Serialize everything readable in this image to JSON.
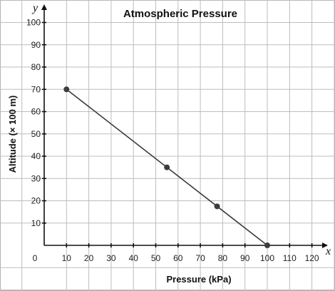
{
  "chart_data": {
    "type": "line",
    "title": "Atmospheric Pressure",
    "xlabel": "Pressure (kPa)",
    "ylabel": "Altitude (× 100 m)",
    "x_axis_var": "x",
    "y_axis_var": "y",
    "xlim": [
      0,
      120
    ],
    "ylim": [
      0,
      100
    ],
    "x_ticks": [
      10,
      20,
      30,
      40,
      50,
      60,
      70,
      80,
      90,
      100,
      110,
      120
    ],
    "y_ticks": [
      10,
      20,
      30,
      40,
      50,
      60,
      70,
      80,
      90,
      100
    ],
    "origin_label": "0",
    "grid": true,
    "series": [
      {
        "x": [
          10,
          55,
          77.5,
          100
        ],
        "y": [
          70,
          35,
          17.5,
          0
        ]
      }
    ],
    "colors": {
      "line": "#3d3d3d",
      "grid": "#bdbdbd",
      "axis": "#111111"
    }
  }
}
